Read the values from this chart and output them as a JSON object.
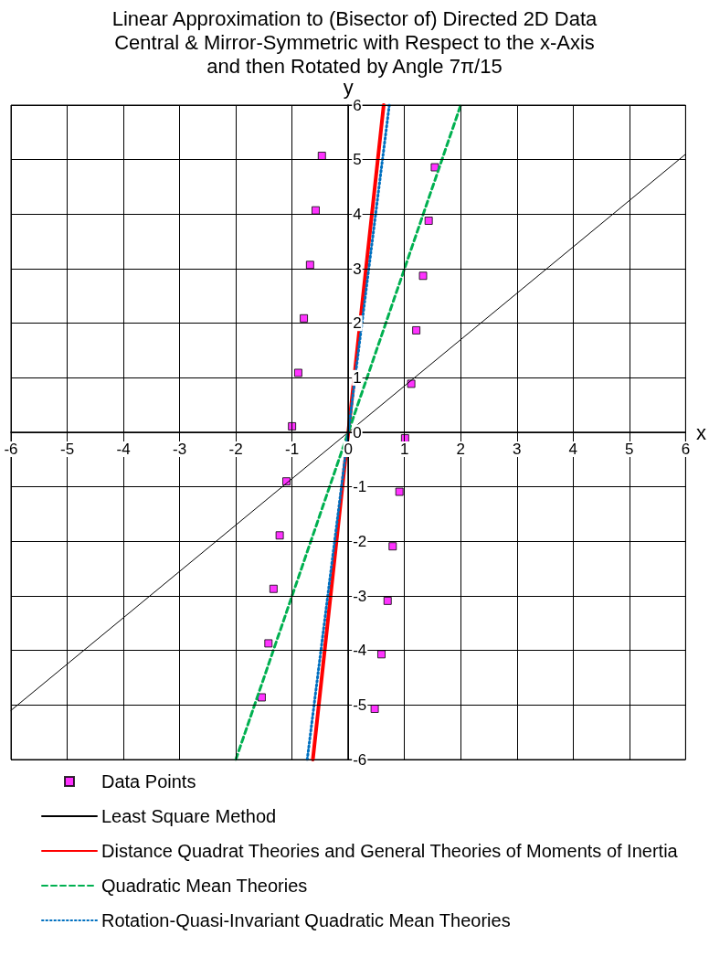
{
  "chart_data": {
    "type": "scatter",
    "title": "Linear Approximation to (Bisector of) Directed 2D Data\nCentral & Mirror-Symmetric with Respect to the x-Axis\nand then Rotated by Angle 7π/15",
    "xlabel": "x",
    "ylabel": "y",
    "xlim": [
      -6,
      6
    ],
    "ylim": [
      -6,
      6
    ],
    "xticks": [
      -6,
      -5,
      -4,
      -3,
      -2,
      -1,
      0,
      1,
      2,
      3,
      4,
      5,
      6
    ],
    "yticks": [
      -6,
      -5,
      -4,
      -3,
      -2,
      -1,
      0,
      1,
      2,
      3,
      4,
      5,
      6
    ],
    "grid": true,
    "legend": "bottom",
    "series": [
      {
        "name": "Data Points",
        "type": "scatter",
        "marker": "square",
        "color": "#ff00ff",
        "x": [
          -0.47,
          -0.58,
          -0.68,
          -0.79,
          -0.89,
          -1.0,
          -1.1,
          -1.22,
          -1.33,
          -1.42,
          -1.54,
          1.54,
          1.43,
          1.33,
          1.21,
          1.12,
          1.01,
          0.91,
          0.79,
          0.7,
          0.59,
          0.47
        ],
        "values": [
          5.07,
          4.07,
          3.07,
          2.09,
          1.09,
          0.11,
          -0.9,
          -1.89,
          -2.87,
          -3.87,
          -4.86,
          4.86,
          3.88,
          2.87,
          1.87,
          0.89,
          -0.11,
          -1.09,
          -2.09,
          -3.09,
          -4.07,
          -5.07
        ]
      },
      {
        "name": "Least Square Method",
        "type": "line",
        "marker": "none",
        "line_style": "solid",
        "color": "#000000",
        "x": [
          -6,
          6
        ],
        "values": [
          -5.1,
          5.1
        ]
      },
      {
        "name": "Distance Quadrat Theories and General Theories of Moments of Inertia",
        "type": "line",
        "marker": "none",
        "line_style": "solid",
        "color": "#ff0000",
        "x": [
          -0.63,
          0.63
        ],
        "values": [
          -6,
          6
        ]
      },
      {
        "name": "Quadratic Mean Theories",
        "type": "line",
        "marker": "none",
        "line_style": "dashed",
        "color": "#00b050",
        "x": [
          -2,
          2
        ],
        "values": [
          -6,
          6
        ]
      },
      {
        "name": "Rotation-Quasi-Invariant Quadratic Mean Theories",
        "type": "line",
        "marker": "none",
        "line_style": "dotted",
        "color": "#0070c0",
        "x": [
          -0.73,
          0.73
        ],
        "values": [
          -6,
          6
        ]
      }
    ]
  }
}
